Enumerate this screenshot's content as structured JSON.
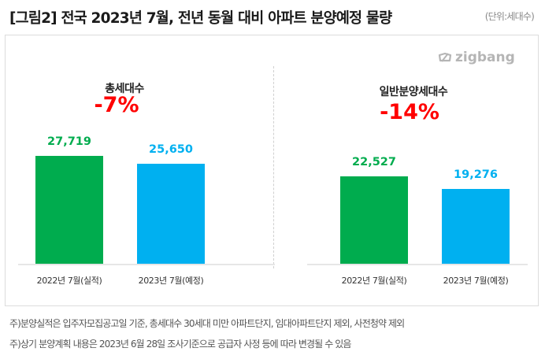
{
  "header": {
    "title": "[그림2] 전국 2023년 7월, 전년 동월 대비 아파트 분양예정 물량",
    "unit": "(단위:세대수)"
  },
  "brand": {
    "logo_text": "zigbang"
  },
  "colors": {
    "actual": "#00ac4e",
    "planned": "#00b0f0",
    "change": "#ff0000"
  },
  "chart_data": [
    {
      "type": "bar",
      "title": "총세대수",
      "annotation": "-7%",
      "categories": [
        "2022년 7월(실적)",
        "2023년 7월(예정)"
      ],
      "values": [
        27719,
        25650
      ],
      "value_labels": [
        "27,719",
        "25,650"
      ],
      "xlabel": "",
      "ylabel": "",
      "ylim": [
        0,
        30000
      ],
      "grid": false,
      "legend": "none"
    },
    {
      "type": "bar",
      "title": "일반분양세대수",
      "annotation": "-14%",
      "categories": [
        "2022년 7월(실적)",
        "2023년 7월(예정)"
      ],
      "values": [
        22527,
        19276
      ],
      "value_labels": [
        "22,527",
        "19,276"
      ],
      "xlabel": "",
      "ylabel": "",
      "ylim": [
        0,
        30000
      ],
      "grid": false,
      "legend": "none"
    }
  ],
  "notes": [
    "주)분양실적은 입주자모집공고일 기준, 총세대수 30세대 미만 아파트단지, 임대아파트단지 제외, 사전청약 제외",
    "주)상기 분양계획 내용은 2023년 6월 28일 조사기준으로 공급자 사정 등에 따라 변경될 수 있음"
  ]
}
